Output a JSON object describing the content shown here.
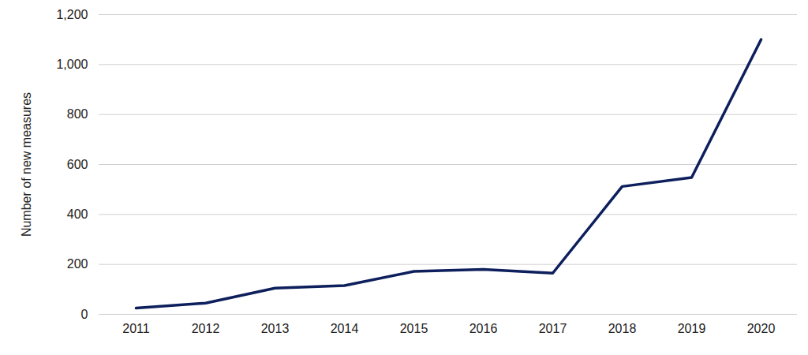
{
  "chart_data": {
    "type": "line",
    "y_label": "Number of new measures",
    "categories": [
      "2011",
      "2012",
      "2013",
      "2014",
      "2015",
      "2016",
      "2017",
      "2018",
      "2019",
      "2020"
    ],
    "values": [
      25,
      45,
      105,
      115,
      172,
      180,
      165,
      512,
      548,
      1100
    ],
    "color": "#0d1f5c",
    "ylim": [
      0,
      1200
    ],
    "yticks": [
      0,
      200,
      400,
      600,
      800,
      1000,
      1200
    ],
    "grid": true
  }
}
